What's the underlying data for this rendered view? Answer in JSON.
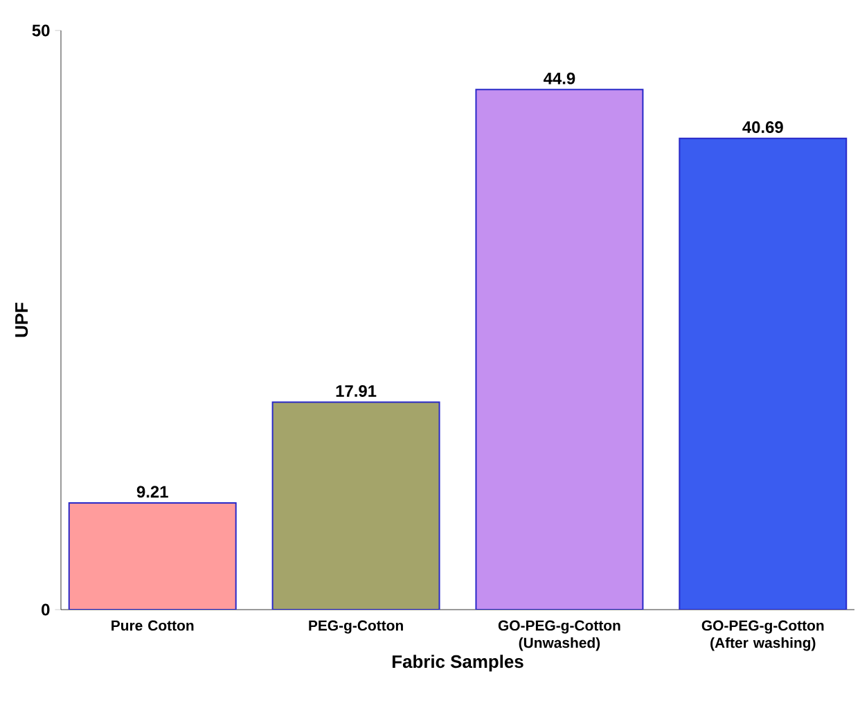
{
  "chart_data": {
    "type": "bar",
    "xlabel": "Fabric Samples",
    "ylabel": "UPF",
    "categories": [
      "Pure Cotton",
      "PEG-g-Cotton",
      "GO-PEG-g-Cotton (Unwashed)",
      "GO-PEG-g-Cotton (After washing)"
    ],
    "values": [
      9.21,
      17.91,
      44.9,
      40.69
    ],
    "colors": [
      "#ff9c9c",
      "#a4a46a",
      "#c490f0",
      "#3a5cf0"
    ],
    "ylim": [
      0,
      50
    ],
    "yticks": [
      0,
      50
    ],
    "grid": false,
    "legend": false,
    "data_labels": true
  }
}
